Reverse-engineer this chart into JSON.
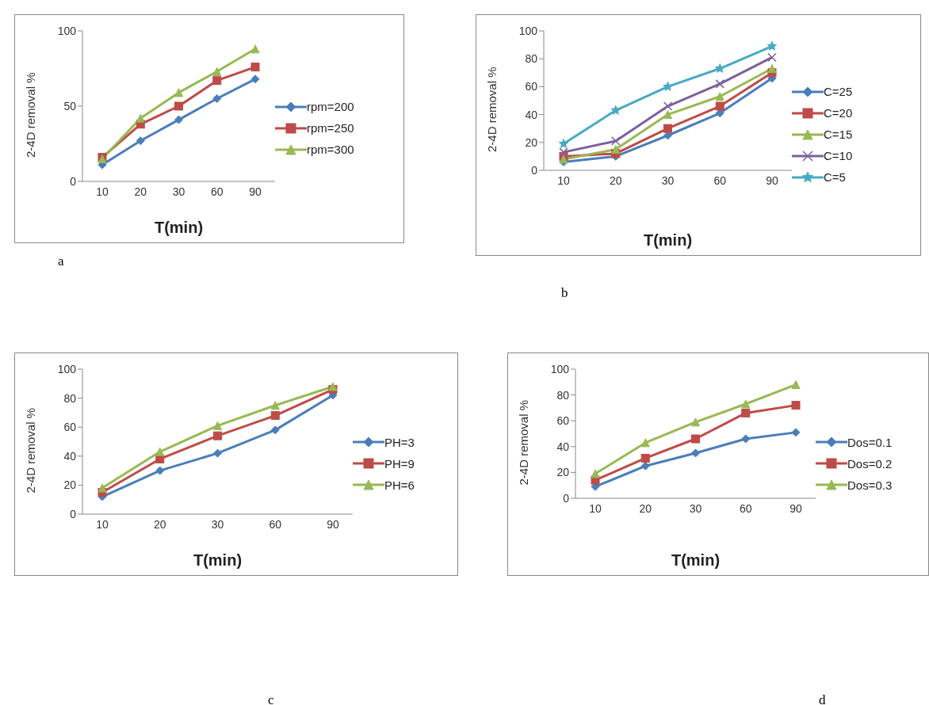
{
  "chart_data": [
    {
      "type": "line",
      "xlabel": "T(min)",
      "ylabel": "2-4D removal %",
      "categories": [
        "10",
        "20",
        "30",
        "60",
        "90"
      ],
      "ylim": [
        0,
        100
      ],
      "yticks": [
        0,
        50,
        100
      ],
      "grid": false,
      "legend": "right",
      "annotations": [
        "a"
      ],
      "series": [
        {
          "name": "rpm=200",
          "color": "#4a7ebb",
          "marker": "diamond",
          "values": [
            11,
            27,
            41,
            55,
            68
          ]
        },
        {
          "name": "rpm=250",
          "color": "#be4b48",
          "marker": "square",
          "values": [
            16,
            38,
            50,
            67,
            76
          ]
        },
        {
          "name": "rpm=300",
          "color": "#98b954",
          "marker": "triangle",
          "values": [
            15,
            42,
            59,
            73,
            88
          ]
        }
      ]
    },
    {
      "type": "line",
      "xlabel": "T(min)",
      "ylabel": "2-4D removal %",
      "categories": [
        "10",
        "20",
        "30",
        "60",
        "90"
      ],
      "ylim": [
        0,
        100
      ],
      "yticks": [
        0,
        20,
        40,
        60,
        80,
        100
      ],
      "grid": false,
      "legend": "right",
      "annotations": [
        "b"
      ],
      "series": [
        {
          "name": "C=25",
          "color": "#4a7ebb",
          "marker": "diamond",
          "values": [
            6,
            10,
            25,
            41,
            66
          ]
        },
        {
          "name": "C=20",
          "color": "#be4b48",
          "marker": "square",
          "values": [
            10,
            12,
            30,
            46,
            70
          ]
        },
        {
          "name": "C=15",
          "color": "#98b954",
          "marker": "triangle",
          "values": [
            8,
            15,
            40,
            53,
            73
          ]
        },
        {
          "name": "C=10",
          "color": "#7d60a0",
          "marker": "cross",
          "values": [
            13,
            21,
            46,
            62,
            81
          ]
        },
        {
          "name": "C=5",
          "color": "#46aac5",
          "marker": "star",
          "values": [
            19,
            43,
            60,
            73,
            89
          ]
        }
      ]
    },
    {
      "type": "line",
      "xlabel": "T(min)",
      "ylabel": "2-4D removal %",
      "categories": [
        "10",
        "20",
        "30",
        "60",
        "90"
      ],
      "ylim": [
        0,
        100
      ],
      "yticks": [
        0,
        20,
        40,
        60,
        80,
        100
      ],
      "grid": false,
      "legend": "right",
      "annotations": [
        "c"
      ],
      "series": [
        {
          "name": "PH=3",
          "color": "#4a7ebb",
          "marker": "diamond",
          "values": [
            12,
            30,
            42,
            58,
            82
          ]
        },
        {
          "name": "PH=9",
          "color": "#be4b48",
          "marker": "square",
          "values": [
            15,
            38,
            54,
            68,
            86
          ]
        },
        {
          "name": "PH=6",
          "color": "#98b954",
          "marker": "triangle",
          "values": [
            18,
            43,
            61,
            75,
            88
          ]
        }
      ]
    },
    {
      "type": "line",
      "xlabel": "T(min)",
      "ylabel": "2-4D removal %",
      "categories": [
        "10",
        "20",
        "30",
        "60",
        "90"
      ],
      "ylim": [
        0,
        100
      ],
      "yticks": [
        0,
        20,
        40,
        60,
        80,
        100
      ],
      "grid": false,
      "legend": "right",
      "annotations": [
        "d"
      ],
      "series": [
        {
          "name": "Dos=0.1",
          "color": "#4a7ebb",
          "marker": "diamond",
          "values": [
            9,
            25,
            35,
            46,
            51
          ]
        },
        {
          "name": "Dos=0.2",
          "color": "#be4b48",
          "marker": "square",
          "values": [
            14,
            31,
            46,
            66,
            72
          ]
        },
        {
          "name": "Dos=0.3",
          "color": "#98b954",
          "marker": "triangle",
          "values": [
            19,
            43,
            59,
            73,
            88
          ]
        }
      ]
    }
  ]
}
